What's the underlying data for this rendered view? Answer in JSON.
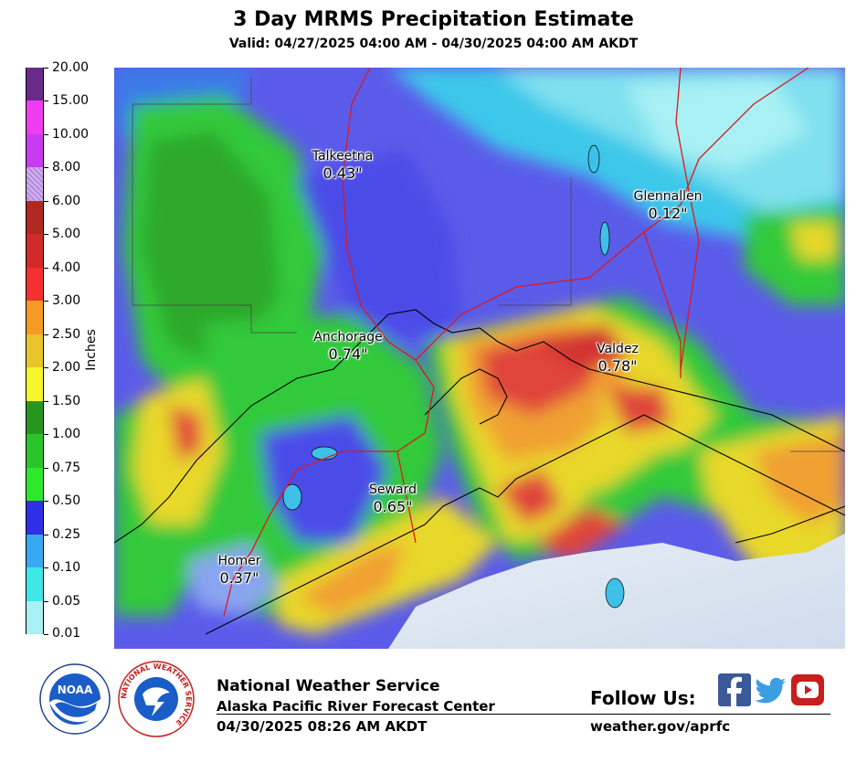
{
  "header": {
    "title": "3 Day MRMS Precipitation Estimate",
    "valid": "Valid: 04/27/2025 04:00 AM - 04/30/2025 04:00 AM AKDT"
  },
  "legend": {
    "axis_label": "Inches",
    "ticks": [
      "0.01",
      "0.05",
      "0.10",
      "0.25",
      "0.50",
      "0.75",
      "1.00",
      "1.50",
      "2.00",
      "2.50",
      "3.00",
      "4.00",
      "5.00",
      "6.00",
      "8.00",
      "10.00",
      "15.00",
      "20.00"
    ],
    "colors": [
      "#a9f0f4",
      "#3fe6e6",
      "#38a8f0",
      "#2f2fe6",
      "#2ee82e",
      "#2bc42b",
      "#28961e",
      "#f5f52a",
      "#e8c42a",
      "#f59a24",
      "#f53030",
      "#d22a2a",
      "#b0281f",
      "#b68ae0",
      "#c83cf0",
      "#f03cf0",
      "#6a2a8a",
      "#ffffff"
    ]
  },
  "map": {
    "cities": [
      {
        "name": "Talkeetna",
        "value": "0.43\""
      },
      {
        "name": "Glennallen",
        "value": "0.12\""
      },
      {
        "name": "Anchorage",
        "value": "0.74\""
      },
      {
        "name": "Valdez",
        "value": "0.78\""
      },
      {
        "name": "Seward",
        "value": "0.65\""
      },
      {
        "name": "Homer",
        "value": "0.37\""
      }
    ]
  },
  "footer": {
    "org": "National Weather Service",
    "center": "Alaska Pacific River Forecast Center",
    "timestamp": "04/30/2025 08:26 AM AKDT",
    "follow": "Follow Us:",
    "url": "weather.gov/aprfc",
    "logos": [
      "noaa-logo",
      "nws-logo"
    ],
    "social": [
      "facebook-icon",
      "twitter-icon",
      "youtube-icon"
    ],
    "noaa_text": "NOAA",
    "nws_ring_text": "NATIONAL WEATHER SERVICE"
  }
}
